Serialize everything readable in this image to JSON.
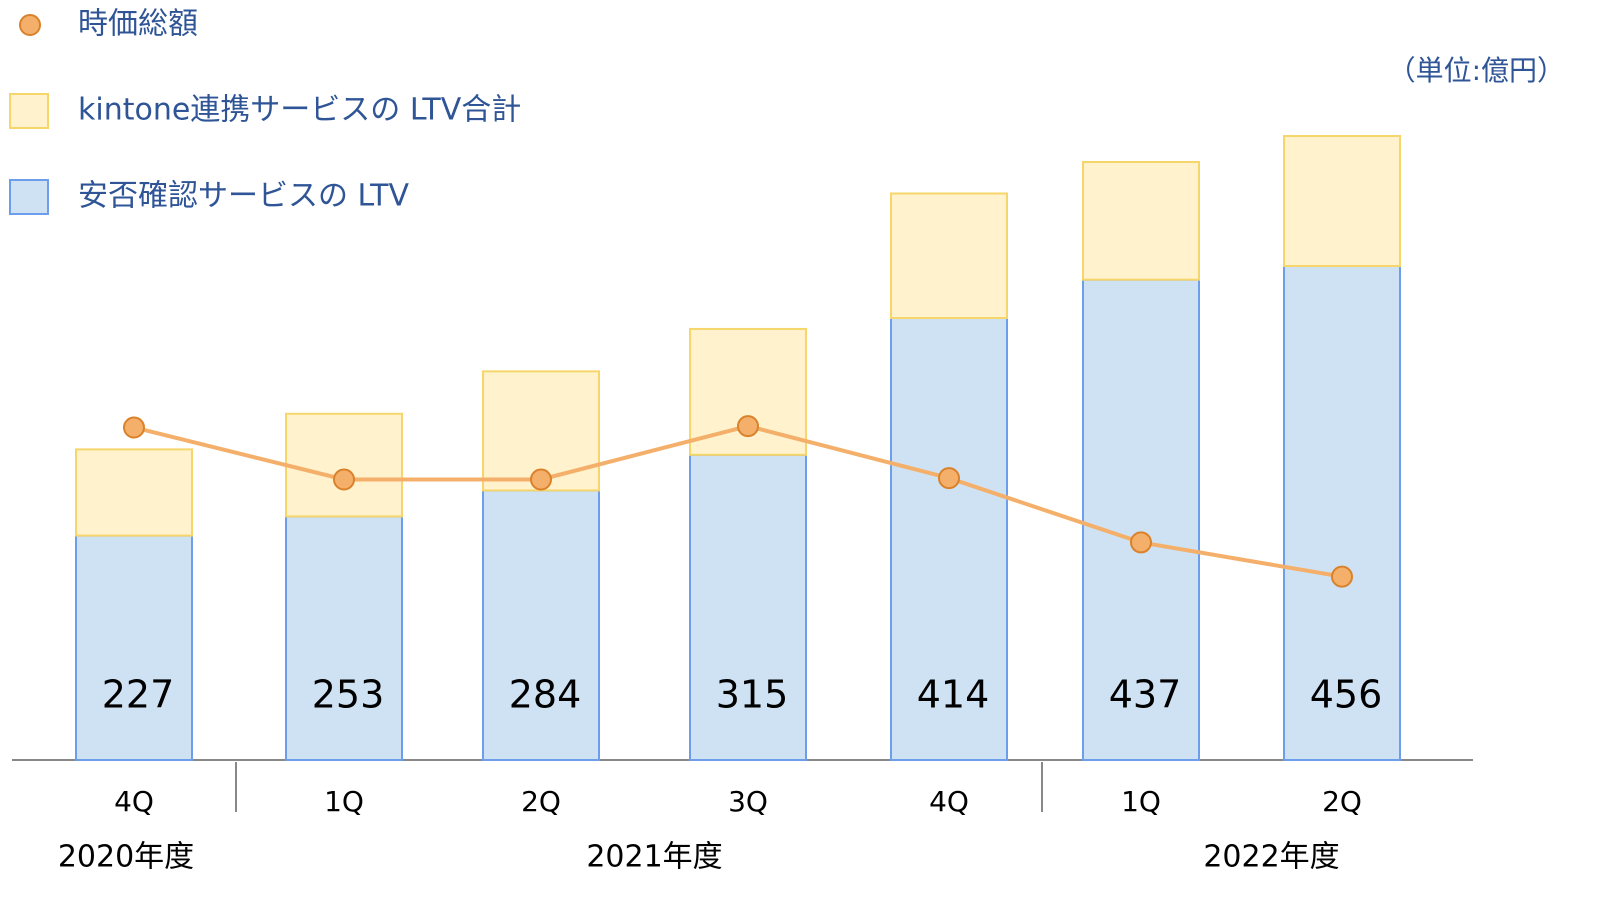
{
  "chart_data": {
    "type": "bar",
    "unit_label": "（単位:億円）",
    "categories": [
      "4Q",
      "1Q",
      "2Q",
      "3Q",
      "4Q",
      "1Q",
      "2Q"
    ],
    "groups": [
      {
        "label": "2020年度",
        "count": 1
      },
      {
        "label": "2021年度",
        "count": 4
      },
      {
        "label": "2022年度",
        "count": 2
      }
    ],
    "series": [
      {
        "name": "安否確認サービスの LTV",
        "color": "#cfe2f3",
        "stroke": "#6d9eeb",
        "kind": "bar",
        "values": [
          164,
          178,
          197,
          223,
          323,
          351,
          361
        ]
      },
      {
        "name": "kintone連携サービスの LTV合計",
        "color": "#fff2cc",
        "stroke": "#f6d66b",
        "kind": "bar",
        "values": [
          63,
          75,
          87,
          92,
          91,
          86,
          95
        ]
      },
      {
        "name": "時価総額",
        "color": "#f4b06a",
        "stroke": "#d9822b",
        "kind": "line",
        "values": [
          243,
          205,
          205,
          244,
          206,
          159,
          134
        ]
      }
    ],
    "total_labels": [
      227,
      253,
      284,
      315,
      414,
      437,
      456
    ]
  }
}
